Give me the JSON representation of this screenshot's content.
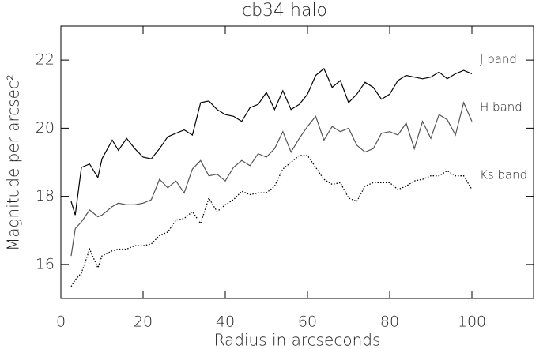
{
  "chart_data": {
    "type": "line",
    "title": "cb34 halo",
    "x_label": "Radius in arcseconds",
    "y_label": "Magnitude per arcsec²",
    "x": [
      2.5,
      3.5,
      5,
      7,
      9,
      10,
      12.5,
      14,
      16,
      18,
      20,
      22,
      24,
      26,
      28,
      30,
      32,
      34,
      36,
      38,
      40,
      42,
      44,
      46,
      48,
      50,
      52,
      54,
      56,
      58,
      60,
      62,
      64,
      66,
      68,
      70,
      72,
      74,
      76,
      78,
      80,
      82,
      84,
      86,
      88,
      90,
      92,
      94,
      96,
      98,
      100
    ],
    "series": [
      {
        "name": "J band",
        "color": "#000000",
        "dash": "solid",
        "values": [
          17.85,
          17.45,
          18.85,
          18.95,
          18.55,
          19.1,
          19.65,
          19.35,
          19.7,
          19.4,
          19.15,
          19.1,
          19.4,
          19.75,
          19.85,
          19.95,
          19.8,
          20.75,
          20.8,
          20.55,
          20.4,
          20.35,
          20.2,
          20.6,
          20.7,
          21.05,
          20.55,
          21.1,
          20.55,
          20.7,
          21.0,
          21.55,
          21.75,
          21.2,
          21.4,
          20.75,
          21.0,
          21.35,
          21.2,
          20.85,
          21.0,
          21.4,
          21.55,
          21.5,
          21.45,
          21.5,
          21.65,
          21.45,
          21.6,
          21.7,
          21.6
        ]
      },
      {
        "name": "H band",
        "color": "#555555",
        "dash": "solid",
        "values": [
          16.25,
          17.05,
          17.25,
          17.6,
          17.4,
          17.45,
          17.7,
          17.8,
          17.75,
          17.75,
          17.8,
          17.9,
          18.5,
          18.25,
          18.45,
          18.1,
          18.8,
          19.05,
          18.6,
          18.65,
          18.45,
          18.85,
          19.05,
          18.9,
          19.25,
          19.15,
          19.4,
          19.9,
          19.3,
          19.7,
          20.05,
          20.35,
          19.65,
          20.05,
          19.9,
          20.0,
          19.5,
          19.3,
          19.4,
          19.85,
          19.9,
          19.8,
          20.15,
          19.4,
          20.2,
          19.7,
          20.4,
          20.25,
          19.8,
          20.75,
          20.2
        ]
      },
      {
        "name": "Ks band",
        "color": "#000000",
        "dash": "dotted",
        "values": [
          15.35,
          15.55,
          15.75,
          16.45,
          15.9,
          16.25,
          16.4,
          16.45,
          16.45,
          16.55,
          16.55,
          16.6,
          16.85,
          16.95,
          17.3,
          17.35,
          17.55,
          17.2,
          17.95,
          17.55,
          17.75,
          17.9,
          18.15,
          18.05,
          18.1,
          18.1,
          18.3,
          18.8,
          19.0,
          19.2,
          19.2,
          18.85,
          18.5,
          18.35,
          18.4,
          17.95,
          17.85,
          18.3,
          18.4,
          18.4,
          18.4,
          18.2,
          18.3,
          18.45,
          18.5,
          18.6,
          18.6,
          18.75,
          18.6,
          18.6,
          18.2
        ]
      }
    ],
    "xlim": [
      0,
      115
    ],
    "ylim": [
      15,
      23
    ],
    "xticks": [
      0,
      20,
      40,
      60,
      80,
      100
    ],
    "yticks": [
      16,
      18,
      20,
      22
    ]
  }
}
